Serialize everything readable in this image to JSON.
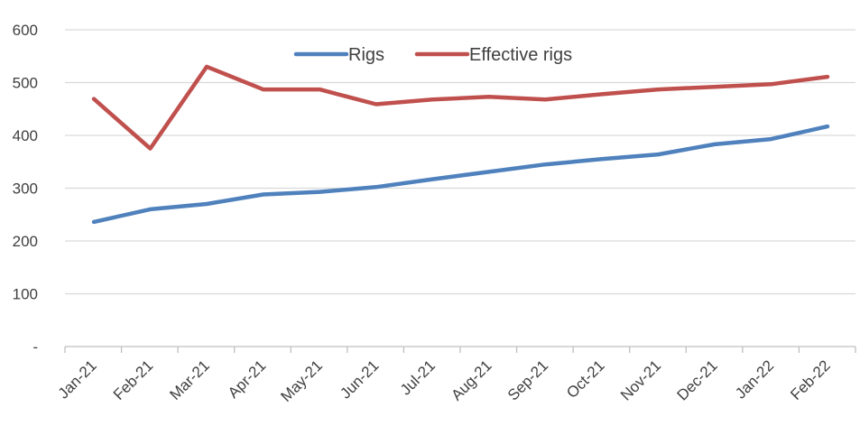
{
  "chart_data": {
    "type": "line",
    "title": "",
    "xlabel": "",
    "ylabel": "",
    "categories": [
      "Jan-21",
      "Feb-21",
      "Mar-21",
      "Apr-21",
      "May-21",
      "Jun-21",
      "Jul-21",
      "Aug-21",
      "Sep-21",
      "Oct-21",
      "Nov-21",
      "Dec-21",
      "Jan-22",
      "Feb-22"
    ],
    "ylim": [
      0,
      600
    ],
    "yticks": [
      {
        "value": 0,
        "label": "-"
      },
      {
        "value": 100,
        "label": "100"
      },
      {
        "value": 200,
        "label": "200"
      },
      {
        "value": 300,
        "label": "300"
      },
      {
        "value": 400,
        "label": "400"
      },
      {
        "value": 500,
        "label": "500"
      },
      {
        "value": 600,
        "label": "600"
      }
    ],
    "grid": true,
    "legend_position": "top",
    "series": [
      {
        "name": "Rigs",
        "color": "#4f81bd",
        "values": [
          236,
          260,
          270,
          288,
          293,
          302,
          317,
          331,
          345,
          355,
          364,
          383,
          393,
          417
        ]
      },
      {
        "name": "Effective rigs",
        "color": "#c0504d",
        "values": [
          469,
          375,
          530,
          487,
          487,
          459,
          468,
          473,
          468,
          478,
          487,
          492,
          497,
          511
        ]
      }
    ]
  }
}
